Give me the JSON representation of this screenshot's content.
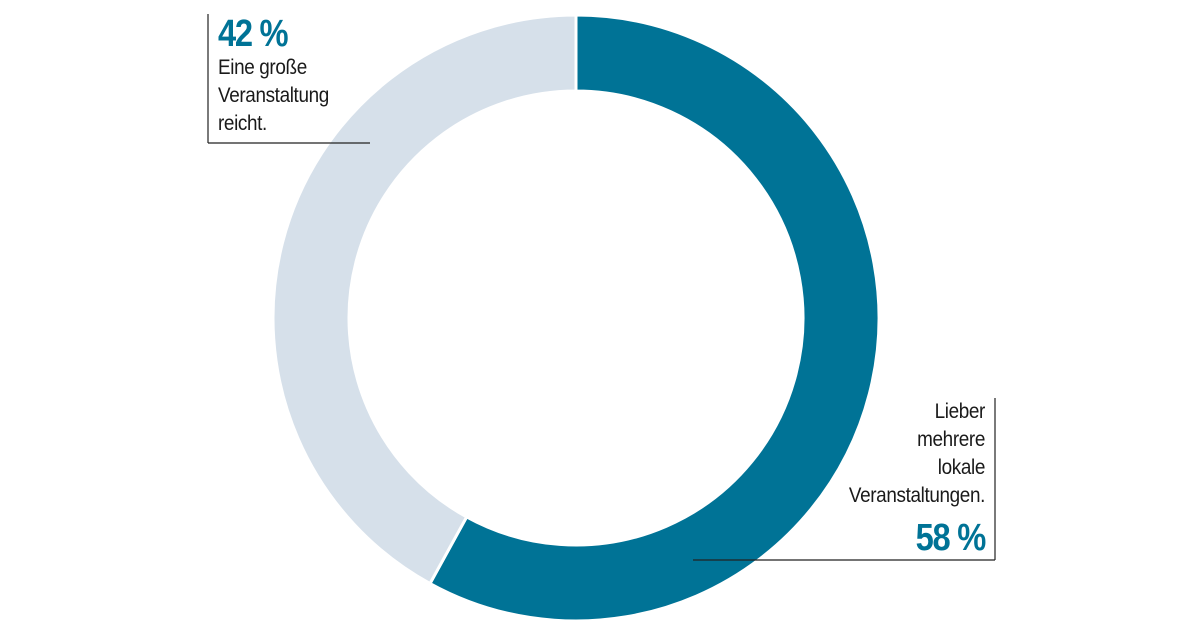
{
  "colors": {
    "primary_slice": "#007396",
    "secondary_slice": "#d6e0ea",
    "accent_text": "#007396",
    "leader_line": "#222222"
  },
  "chart_data": {
    "type": "pie",
    "donut": true,
    "title": "",
    "slices": [
      {
        "value": 58,
        "value_label": "58 %",
        "label": "Lieber\nmehrere\nlokale\nVeranstaltungen.",
        "color": "#007396"
      },
      {
        "value": 42,
        "value_label": "42 %",
        "label": "Eine große\nVeranstaltung\nreicht.",
        "color": "#d6e0ea"
      }
    ]
  }
}
